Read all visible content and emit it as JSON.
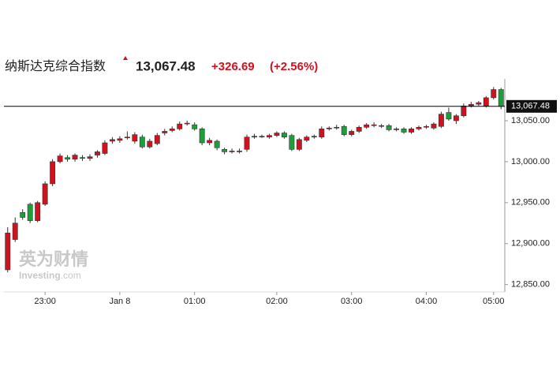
{
  "header": {
    "title": "纳斯达克综合指数",
    "price": "13,067.48",
    "change": "+326.69",
    "change_pct": "(+2.56%)"
  },
  "watermark": {
    "cn": "英为财情",
    "en": "Investing",
    "suffix": ".com"
  },
  "chart_data": {
    "type": "candlestick",
    "categories": [
      null,
      null,
      null,
      null,
      null,
      "23:00",
      null,
      null,
      null,
      null,
      null,
      null,
      null,
      null,
      null,
      "Jan 8",
      null,
      null,
      null,
      null,
      null,
      null,
      null,
      null,
      null,
      "01:00",
      null,
      null,
      null,
      null,
      null,
      null,
      null,
      null,
      null,
      null,
      "02:00",
      null,
      null,
      null,
      null,
      null,
      null,
      null,
      null,
      null,
      "03:00",
      null,
      null,
      null,
      null,
      null,
      null,
      null,
      null,
      null,
      "04:00",
      null,
      null,
      null,
      null,
      null,
      null,
      null,
      null,
      "05:00",
      null
    ],
    "open": [
      12868,
      12905,
      12938,
      12948,
      12928,
      12948,
      12973,
      13000,
      13005,
      13003,
      13005,
      13004,
      13008,
      13010,
      13025,
      13026,
      13030,
      13025,
      13030,
      13018,
      13022,
      13035,
      13038,
      13040,
      13047,
      13045,
      13040,
      13023,
      13025,
      13015,
      13012,
      13013,
      13015,
      13030,
      13031,
      13030,
      13032,
      13035,
      13032,
      13015,
      13026,
      13030,
      13030,
      13040,
      13042,
      13043,
      13033,
      13037,
      13042,
      13045,
      13044,
      13044,
      13039,
      13040,
      13036,
      13040,
      13042,
      13041,
      13043,
      13060,
      13050,
      13056,
      13068,
      13070,
      13068,
      13078,
      13088
    ],
    "high": [
      12920,
      12932,
      12942,
      12950,
      12952,
      12976,
      13003,
      13010,
      13008,
      13010,
      13008,
      13009,
      13014,
      13026,
      13030,
      13031,
      13037,
      13036,
      13033,
      13028,
      13035,
      13040,
      13043,
      13049,
      13050,
      13048,
      13042,
      13029,
      13027,
      13017,
      13016,
      13016,
      13033,
      13034,
      13033,
      13034,
      13037,
      13037,
      13034,
      13029,
      13032,
      13033,
      13043,
      13043,
      13045,
      13045,
      13039,
      13044,
      13047,
      13048,
      13046,
      13046,
      13042,
      13042,
      13042,
      13044,
      13045,
      13048,
      13061,
      13066,
      13058,
      13071,
      13073,
      13074,
      13080,
      13091,
      13090
    ],
    "low": [
      12865,
      12902,
      12929,
      12925,
      12926,
      12946,
      12970,
      12998,
      13000,
      13000,
      13001,
      13001,
      13005,
      13008,
      13022,
      13023,
      13027,
      13022,
      13016,
      13016,
      13020,
      13032,
      13036,
      13038,
      13044,
      13038,
      13020,
      13020,
      13014,
      13009,
      13010,
      13010,
      13012,
      13028,
      13029,
      13028,
      13030,
      13028,
      13013,
      13013,
      13024,
      13028,
      13028,
      13038,
      13039,
      13031,
      13031,
      13035,
      13040,
      13042,
      13041,
      13037,
      13037,
      13034,
      13034,
      13038,
      13040,
      13039,
      13041,
      13050,
      13046,
      13054,
      13066,
      13068,
      13066,
      13076,
      13064
    ],
    "close": [
      12913,
      12925,
      12932,
      12928,
      12950,
      12973,
      13000,
      13007,
      13003,
      13008,
      13004,
      13006,
      13012,
      13023,
      13027,
      13028,
      13030,
      13033,
      13018,
      13025,
      13032,
      13037,
      13040,
      13046,
      13047,
      13040,
      13023,
      13026,
      13017,
      13012,
      13013,
      13013,
      13030,
      13031,
      13031,
      13032,
      13035,
      13030,
      13015,
      13027,
      13030,
      13031,
      13040,
      13041,
      13042,
      13033,
      13037,
      13042,
      13045,
      13045,
      13044,
      13039,
      13040,
      13036,
      13040,
      13042,
      13043,
      13046,
      13058,
      13052,
      13056,
      13068,
      13070,
      13072,
      13078,
      13088,
      13067.48
    ],
    "up_color": "#d3111e",
    "down_color": "#1e9e3a",
    "ylim": [
      12841,
      13101
    ],
    "yticks": [
      {
        "value": 12850,
        "label": "12,850.00"
      },
      {
        "value": 12900,
        "label": "12,900.00"
      },
      {
        "value": 12950,
        "label": "12,950.00"
      },
      {
        "value": 13000,
        "label": "13,000.00"
      },
      {
        "value": 13050,
        "label": "13,050.00"
      }
    ],
    "last_price": {
      "value": 13067.48,
      "label": "13,067.48"
    }
  }
}
